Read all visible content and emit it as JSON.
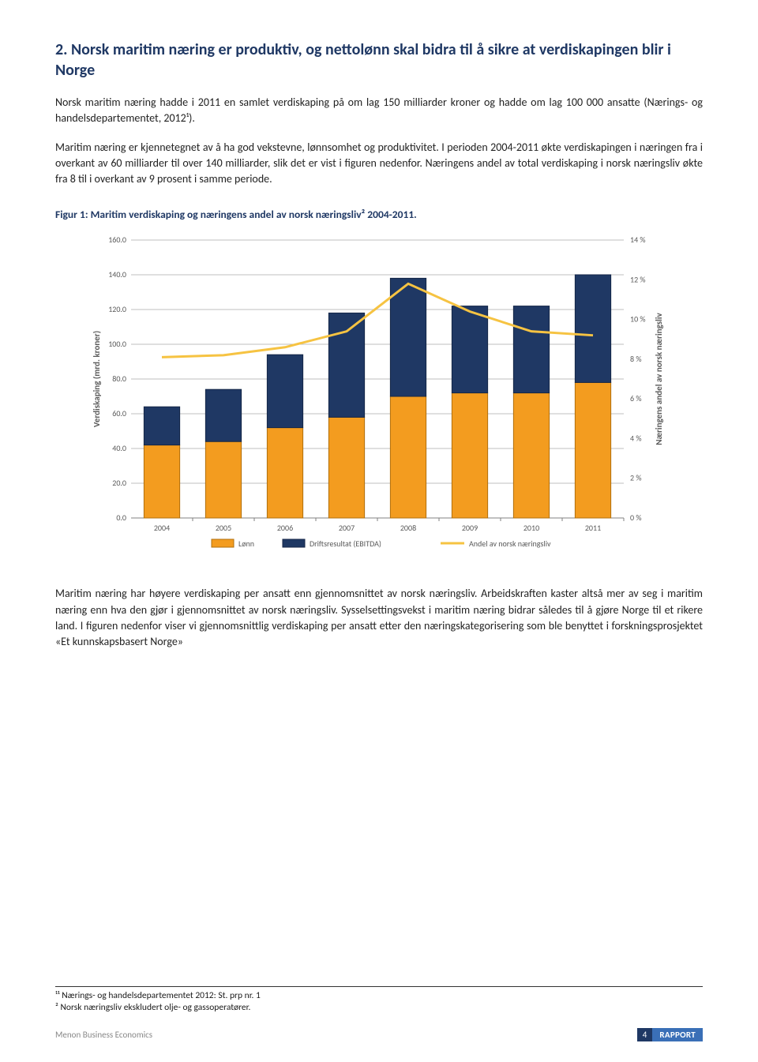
{
  "section": {
    "title": "2.   Norsk maritim næring er produktiv, og nettolønn skal bidra til å sikre at verdiskapingen blir i Norge",
    "para1": "Norsk maritim næring hadde i 2011 en samlet verdiskaping på om lag 150 milliarder kroner og hadde om lag 100 000 ansatte (Nærings- og handelsdepartementet, 2012¹).",
    "para2": "Maritim næring er kjennetegnet av å ha god vekstevne, lønnsomhet og produktivitet.  I perioden 2004-2011 økte verdiskapingen i næringen fra i overkant av 60 milliarder til over 140 milliarder, slik det er vist i figuren nedenfor. Næringens andel av total verdiskaping i norsk næringsliv økte fra 8 til i overkant av 9 prosent i samme periode."
  },
  "figure": {
    "caption": "Figur 1: Maritim verdiskaping og næringens andel av norsk næringsliv² 2004-2011.",
    "chart": {
      "type": "stacked-bar-with-line",
      "background_color": "#ffffff",
      "grid_color": "#bfbfbf",
      "axis_color": "#808080",
      "label_color": "#595959",
      "label_fontsize": 11,
      "tick_fontsize": 10,
      "categories": [
        "2004",
        "2005",
        "2006",
        "2007",
        "2008",
        "2009",
        "2010",
        "2011"
      ],
      "y_left": {
        "label": "Verdiskaping (mrd. kroner)",
        "min": 0,
        "max": 160,
        "step": 20
      },
      "y_right": {
        "label": "Næringens andel av norsk næringsliv",
        "min": 0,
        "max": 14,
        "step": 2,
        "suffix": " %"
      },
      "series_lonn": {
        "label": "Lønn",
        "color": "#f39c1f",
        "border": "#b06f0c",
        "values": [
          42,
          44,
          52,
          58,
          70,
          72,
          72,
          78
        ]
      },
      "series_ebitda": {
        "label": "Driftsresultat (EBITDA)",
        "color": "#1f3864",
        "border": "#142647",
        "values": [
          22,
          30,
          42,
          60,
          68,
          50,
          50,
          62
        ]
      },
      "series_andel": {
        "label": "Andel av norsk næringsliv",
        "color": "#f6c342",
        "values": [
          8.1,
          8.2,
          8.6,
          9.4,
          11.8,
          10.4,
          9.4,
          9.2
        ]
      },
      "bar_width": 0.58,
      "line_width": 3
    }
  },
  "para3": "Maritim næring har høyere verdiskaping per ansatt enn gjennomsnittet av norsk næringsliv. Arbeidskraften kaster altså mer av seg i maritim næring enn hva den gjør i gjennomsnittet av norsk næringsliv. Sysselsettingsvekst i maritim næring bidrar således til å gjøre Norge til et rikere land. I figuren nedenfor viser vi gjennomsnittlig  verdiskaping  per  ansatt  etter  den  næringskategorisering  som  ble  benyttet  i forskningsprosjektet «Et kunnskapsbasert Norge»",
  "footnotes": {
    "fn1": "¹¹ Nærings- og handelsdepartementet 2012: St. prp nr. 1",
    "fn2": "² Norsk næringsliv ekskludert olje- og gassoperatører."
  },
  "footer": {
    "left": "Menon Business Economics",
    "page": "4",
    "right": "RAPPORT"
  }
}
